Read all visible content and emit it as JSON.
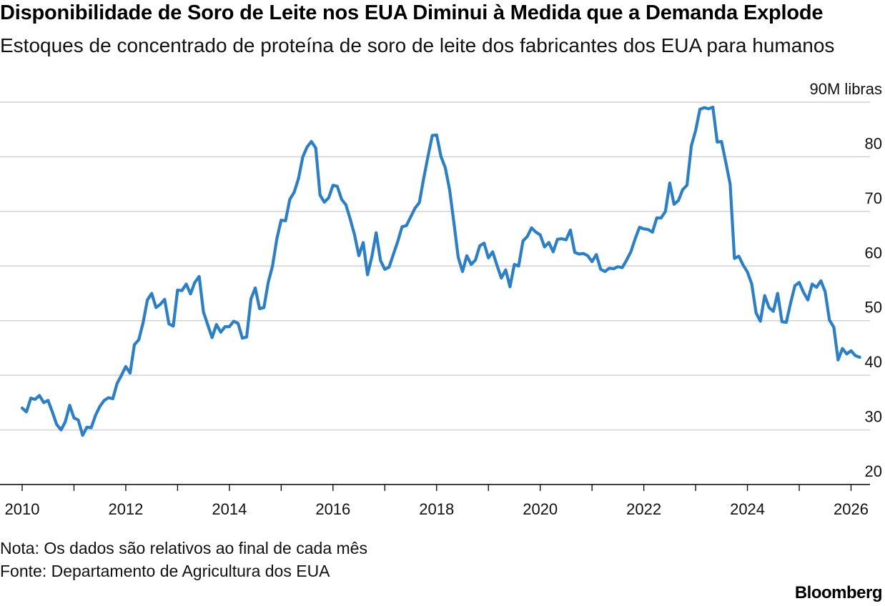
{
  "title": "Disponibilidade de Soro de Leite nos EUA Diminui à Medida que a Demanda Explode",
  "subtitle": "Estoques de concentrado de proteína de soro de leite dos fabricantes dos EUA para humanos",
  "note": "Nota: Os dados são relativos ao final de cada mês",
  "source": "Fonte: Departamento de Agricultura dos EUA",
  "brand": "Bloomberg",
  "colors": {
    "line": "#2a7fca",
    "grid": "#d2d2d2",
    "axis": "#000000"
  },
  "chart_data": {
    "type": "line",
    "unit_label": "90M libras",
    "y_ticks": [
      "90M libras",
      "80",
      "70",
      "60",
      "50",
      "40",
      "30",
      "20"
    ],
    "y_tick_values": [
      90,
      80,
      70,
      60,
      50,
      40,
      30,
      20
    ],
    "x_tick_labels": [
      "2010",
      "2012",
      "2014",
      "2016",
      "2018",
      "2020",
      "2022",
      "2024",
      "2026"
    ],
    "ylim": [
      20,
      90
    ],
    "xlim": [
      2010.0,
      2026.4
    ],
    "grid": true,
    "series": [
      {
        "x": [
          2010.0,
          2010.083,
          2010.167,
          2010.25,
          2010.333,
          2010.417,
          2010.5,
          2010.583,
          2010.667,
          2010.75,
          2010.833,
          2010.917,
          2011.0,
          2011.083,
          2011.167,
          2011.25,
          2011.333,
          2011.417,
          2011.5,
          2011.583,
          2011.667,
          2011.75,
          2011.833,
          2011.917,
          2012.0,
          2012.083,
          2012.167,
          2012.25,
          2012.333,
          2012.417,
          2012.5,
          2012.583,
          2012.667,
          2012.75,
          2012.833,
          2012.917,
          2013.0,
          2013.083,
          2013.167,
          2013.25,
          2013.333,
          2013.417,
          2013.5,
          2013.583,
          2013.667,
          2013.75,
          2013.833,
          2013.917,
          2014.0,
          2014.083,
          2014.167,
          2014.25,
          2014.333,
          2014.417,
          2014.5,
          2014.583,
          2014.667,
          2014.75,
          2014.833,
          2014.917,
          2015.0,
          2015.083,
          2015.167,
          2015.25,
          2015.333,
          2015.417,
          2015.5,
          2015.583,
          2015.667,
          2015.75,
          2015.833,
          2015.917,
          2016.0,
          2016.083,
          2016.167,
          2016.25,
          2016.333,
          2016.417,
          2016.5,
          2016.583,
          2016.667,
          2016.75,
          2016.833,
          2016.917,
          2017.0,
          2017.083,
          2017.167,
          2017.25,
          2017.333,
          2017.417,
          2017.5,
          2017.583,
          2017.667,
          2017.75,
          2017.833,
          2017.917,
          2018.0,
          2018.083,
          2018.167,
          2018.25,
          2018.333,
          2018.417,
          2018.5,
          2018.583,
          2018.667,
          2018.75,
          2018.833,
          2018.917,
          2019.0,
          2019.083,
          2019.167,
          2019.25,
          2019.333,
          2019.417,
          2019.5,
          2019.583,
          2019.667,
          2019.75,
          2019.833,
          2019.917,
          2020.0,
          2020.083,
          2020.167,
          2020.25,
          2020.333,
          2020.417,
          2020.5,
          2020.583,
          2020.667,
          2020.75,
          2020.833,
          2020.917,
          2021.0,
          2021.083,
          2021.167,
          2021.25,
          2021.333,
          2021.417,
          2021.5,
          2021.583,
          2021.667,
          2021.75,
          2021.833,
          2021.917,
          2022.0,
          2022.083,
          2022.167,
          2022.25,
          2022.333,
          2022.417,
          2022.5,
          2022.583,
          2022.667,
          2022.75,
          2022.833,
          2022.917,
          2023.0,
          2023.083,
          2023.167,
          2023.25,
          2023.333,
          2023.417,
          2023.5,
          2023.583,
          2023.667,
          2023.75,
          2023.833,
          2023.917,
          2024.0,
          2024.083,
          2024.167,
          2024.25,
          2024.333,
          2024.417,
          2024.5,
          2024.583,
          2024.667,
          2024.75,
          2024.833,
          2024.917,
          2025.0,
          2025.083,
          2025.167,
          2025.25,
          2025.333,
          2025.417,
          2025.5,
          2025.583,
          2025.667,
          2025.75,
          2025.833,
          2025.917,
          2026.0,
          2026.083,
          2026.167
        ],
        "y": [
          34.0,
          33.3,
          35.8,
          35.6,
          36.3,
          35.0,
          35.4,
          33.3,
          31.0,
          30.0,
          31.5,
          34.5,
          32.2,
          31.8,
          29.0,
          30.5,
          30.4,
          32.7,
          34.3,
          35.4,
          35.9,
          35.7,
          38.5,
          40.0,
          41.6,
          40.4,
          45.6,
          46.5,
          49.6,
          53.8,
          55.0,
          52.4,
          53.0,
          53.9,
          49.4,
          49.0,
          55.6,
          55.5,
          56.7,
          54.9,
          57.0,
          58.1,
          51.6,
          49.2,
          46.9,
          49.3,
          47.9,
          48.9,
          48.9,
          49.9,
          49.5,
          46.8,
          47.0,
          54.0,
          56.0,
          52.2,
          52.4,
          57.0,
          60.0,
          65.0,
          68.4,
          68.3,
          72.2,
          73.5,
          76.0,
          80.0,
          81.8,
          82.8,
          81.6,
          73.0,
          71.7,
          72.5,
          74.8,
          74.6,
          72.2,
          71.2,
          68.6,
          65.7,
          61.9,
          64.3,
          58.4,
          61.7,
          66.1,
          61.0,
          59.4,
          59.8,
          62.2,
          64.5,
          67.2,
          67.4,
          69.0,
          70.6,
          71.6,
          76.0,
          80.0,
          83.9,
          84.0,
          80.1,
          78.0,
          74.0,
          68.0,
          61.6,
          59.0,
          61.9,
          60.3,
          61.1,
          63.7,
          64.2,
          61.5,
          62.6,
          60.1,
          57.8,
          59.3,
          56.2,
          60.3,
          60.0,
          64.6,
          65.4,
          67.0,
          66.2,
          65.7,
          63.5,
          64.3,
          62.6,
          64.9,
          65.0,
          64.8,
          66.6,
          62.5,
          62.2,
          62.3,
          61.9,
          60.8,
          62.1,
          59.4,
          59.0,
          59.6,
          59.5,
          59.9,
          59.7,
          61.1,
          62.6,
          65.0,
          67.1,
          66.8,
          66.7,
          66.2,
          68.8,
          68.8,
          70.0,
          75.2,
          71.3,
          72.0,
          74.0,
          74.8,
          82.0,
          84.8,
          88.7,
          89.0,
          88.8,
          89.1,
          82.7,
          82.8,
          79.0,
          75.0,
          61.4,
          61.8,
          60.2,
          58.9,
          56.7,
          51.4,
          49.9,
          54.6,
          52.4,
          51.7,
          55.0,
          49.8,
          49.7,
          53.2,
          56.4,
          57.0,
          55.2,
          53.8,
          56.7,
          56.1,
          57.3,
          55.3,
          50.1,
          48.8,
          42.8,
          44.9,
          43.9,
          44.5,
          43.6,
          43.3
        ]
      }
    ]
  }
}
